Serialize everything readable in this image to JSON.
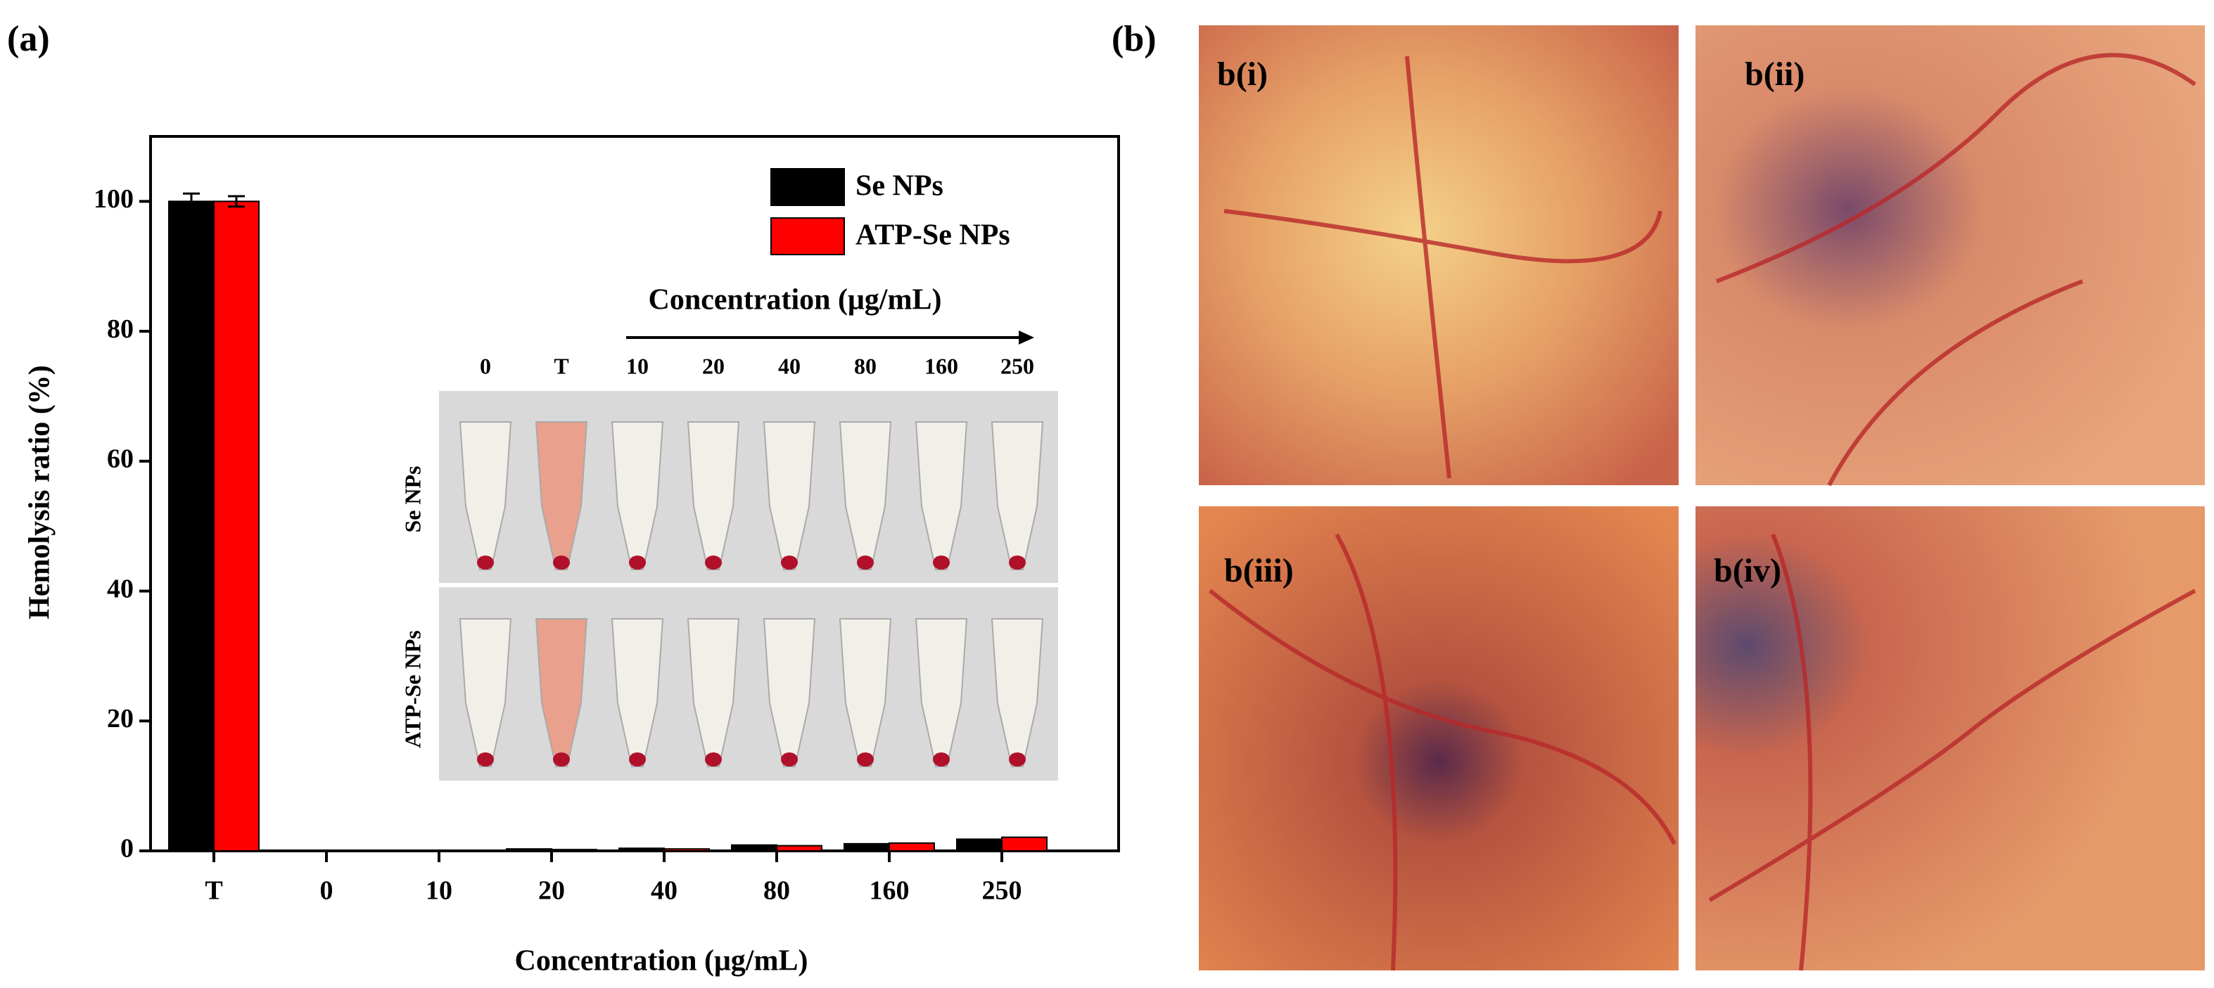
{
  "chart_data": {
    "type": "bar",
    "panel_label": "(a)",
    "ylabel": "Hemolysis ratio (%)",
    "xlabel": "Concentration (μg/mL)",
    "categories": [
      "T",
      "0",
      "10",
      "20",
      "40",
      "80",
      "160",
      "250"
    ],
    "series": [
      {
        "name": "Se NPs",
        "color": "#000000",
        "values": [
          100,
          0,
          0,
          0.3,
          0.4,
          0.9,
          1.1,
          1.8
        ],
        "errors": [
          1.2,
          null,
          null,
          null,
          null,
          null,
          null,
          null
        ]
      },
      {
        "name": "ATP-Se NPs",
        "color": "#ff0000",
        "values": [
          100,
          0,
          0,
          0.2,
          0.3,
          0.8,
          1.2,
          2.1
        ],
        "errors": [
          0.8,
          null,
          null,
          null,
          null,
          null,
          null,
          null
        ]
      }
    ],
    "ylim": [
      0,
      110
    ],
    "yticks": [
      0,
      20,
      40,
      60,
      80,
      100
    ],
    "inset": {
      "title": "Concentration (μg/mL)",
      "labels": [
        "0",
        "T",
        "10",
        "20",
        "40",
        "80",
        "160",
        "250"
      ],
      "rows": [
        "Se NPs",
        "ATP-Se NPs"
      ]
    }
  },
  "panel_b": {
    "label": "(b)",
    "images": [
      "b(i)",
      "b(ii)",
      "b(iii)",
      "b(iv)"
    ]
  }
}
